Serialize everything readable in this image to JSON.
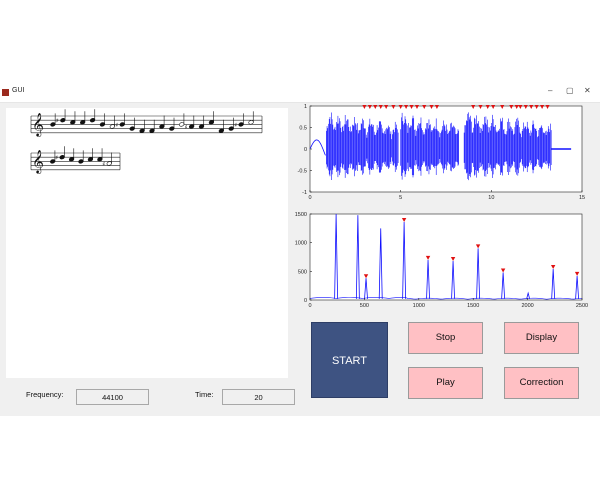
{
  "window": {
    "title": "GUI",
    "controls": [
      "–",
      "▢",
      "✕"
    ]
  },
  "score": {
    "staff1_notes": [
      {
        "s": 4,
        "sharp": false,
        "tail": 0
      },
      {
        "s": 6,
        "sharp": true,
        "tail": 0
      },
      {
        "s": 5,
        "sharp": false,
        "tail": 0
      },
      {
        "s": 5,
        "sharp": false,
        "tail": 0
      },
      {
        "s": 6,
        "sharp": false,
        "tail": 0
      },
      {
        "s": 4,
        "sharp": false,
        "tail": 0
      },
      {
        "s": 3,
        "sharp": false,
        "tail": 0
      },
      {
        "s": 4,
        "sharp": true,
        "tail": 0
      },
      {
        "s": 2,
        "sharp": false,
        "tail": 0
      },
      {
        "s": 1,
        "sharp": false,
        "tail": 0
      },
      {
        "s": 1,
        "sharp": false,
        "tail": 0
      },
      {
        "s": 3,
        "sharp": false,
        "tail": 0
      },
      {
        "s": 2,
        "sharp": false,
        "tail": 0
      },
      {
        "s": 4,
        "sharp": false,
        "tail": 0
      },
      {
        "s": 3,
        "sharp": true,
        "tail": 0
      },
      {
        "s": 3,
        "sharp": false,
        "tail": 0
      },
      {
        "s": 5,
        "sharp": false,
        "tail": 0
      },
      {
        "s": 1,
        "sharp": false,
        "tail": 0
      },
      {
        "s": 2,
        "sharp": false,
        "tail": 0
      },
      {
        "s": 4,
        "sharp": true,
        "tail": 0
      },
      {
        "s": 5,
        "sharp": false,
        "tail": 0
      }
    ],
    "staff2_notes": [
      {
        "s": 4,
        "sharp": false,
        "tail": 0
      },
      {
        "s": 6,
        "sharp": true,
        "tail": 0
      },
      {
        "s": 5,
        "sharp": false,
        "tail": 0
      },
      {
        "s": 4,
        "sharp": false,
        "tail": 0
      },
      {
        "s": 5,
        "sharp": false,
        "tail": 0
      },
      {
        "s": 5,
        "sharp": false,
        "tail": 0
      },
      {
        "s": 3,
        "sharp": true,
        "tail": 0
      }
    ]
  },
  "waveform": {
    "x_ticks": [
      "0",
      "5",
      "10",
      "15"
    ],
    "y_ticks": [
      "1",
      "0.5",
      "0",
      "-0.5",
      "-1"
    ],
    "xlim": [
      0,
      15
    ],
    "ylim": [
      -1,
      1
    ],
    "segments": [
      [
        0.9,
        4.9
      ],
      [
        5.0,
        8.2
      ],
      [
        8.5,
        13.3
      ]
    ],
    "peak_times": [
      3.0,
      3.3,
      3.6,
      3.9,
      4.2,
      4.6,
      5.0,
      5.3,
      5.6,
      5.9,
      6.3,
      6.7,
      7.0,
      9.0,
      9.4,
      9.8,
      10.1,
      10.6,
      11.1,
      11.4,
      11.6,
      11.9,
      12.2,
      12.5,
      12.8,
      13.1
    ],
    "series_color": "#1010ff",
    "marker_color": "#e01010"
  },
  "spectrum": {
    "x_ticks": [
      "0",
      "500",
      "1000",
      "1500",
      "2000",
      "2500"
    ],
    "y_ticks": [
      "1500",
      "1000",
      "500",
      "0"
    ],
    "xlim": [
      0,
      2500
    ],
    "ylim": [
      0,
      1500
    ],
    "peaks": [
      {
        "x": 240,
        "y": 1500
      },
      {
        "x": 440,
        "y": 1480
      },
      {
        "x": 515,
        "y": 380
      },
      {
        "x": 650,
        "y": 1250
      },
      {
        "x": 865,
        "y": 1360
      },
      {
        "x": 1085,
        "y": 700
      },
      {
        "x": 1315,
        "y": 680
      },
      {
        "x": 1545,
        "y": 900
      },
      {
        "x": 1775,
        "y": 480
      },
      {
        "x": 2005,
        "y": 120
      },
      {
        "x": 2235,
        "y": 540
      },
      {
        "x": 2455,
        "y": 420
      }
    ],
    "markers": [
      {
        "x": 515,
        "y": 380
      },
      {
        "x": 865,
        "y": 1360
      },
      {
        "x": 1085,
        "y": 700
      },
      {
        "x": 1315,
        "y": 680
      },
      {
        "x": 1545,
        "y": 900
      },
      {
        "x": 1775,
        "y": 480
      },
      {
        "x": 2235,
        "y": 540
      },
      {
        "x": 2455,
        "y": 420
      }
    ],
    "series_color": "#1010ff",
    "marker_color": "#e01010"
  },
  "controls": {
    "start": "START",
    "stop": "Stop",
    "display": "Display",
    "play": "Play",
    "correction": "Correction",
    "frequency_label": "Frequency:",
    "frequency_value": "44100",
    "time_label": "Time:",
    "time_value": "20"
  }
}
